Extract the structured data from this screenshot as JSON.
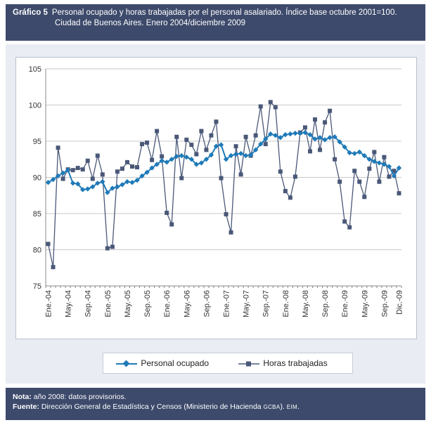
{
  "header": {
    "number": "Gráfico 5",
    "title_line1": "Personal ocupado y horas trabajadas por el personal asalariado. Índice base octubre 2001=100.",
    "title_line2": "Ciudad de Buenos Aires. Enero 2004/diciembre 2009"
  },
  "footer": {
    "note_label": "Nota:",
    "note_text": " año 2008: datos provisorios.",
    "source_label": "Fuente:",
    "source_text": " Dirección General de Estadística y Censos (Ministerio de Hacienda ",
    "source_gcba": "GCBA",
    "source_end": "). ",
    "source_eim": "EIM",
    "source_dot": "."
  },
  "chart_data": {
    "type": "line",
    "ylim": [
      75,
      105
    ],
    "yticks": [
      75,
      80,
      85,
      90,
      95,
      100,
      105
    ],
    "x_tick_labels": [
      "Ene.-04",
      "May.-04",
      "Sep.-04",
      "Ene.-05",
      "May.-05",
      "Sep.-05",
      "Ene.-06",
      "May.-06",
      "Sep.-06",
      "Ene.-07",
      "May.-07",
      "Sep.-07",
      "Ene.-08",
      "May.-08",
      "Sep.-08",
      "Ene.-09",
      "May.-09",
      "Sep.-09",
      "Dic.-09"
    ],
    "x_tick_indices": [
      0,
      4,
      8,
      12,
      16,
      20,
      24,
      28,
      32,
      36,
      40,
      44,
      48,
      52,
      56,
      60,
      64,
      68,
      71
    ],
    "legend_position": "bottom",
    "series": [
      {
        "name": "Personal ocupado",
        "color": "#1f7ab8",
        "marker": "diamond",
        "values": [
          89.3,
          89.7,
          90.2,
          90.6,
          91.0,
          89.2,
          89.1,
          88.3,
          88.4,
          88.7,
          89.2,
          89.4,
          87.9,
          88.5,
          88.7,
          89.0,
          89.4,
          89.3,
          89.6,
          90.2,
          90.7,
          91.3,
          91.8,
          92.3,
          92.1,
          92.5,
          92.9,
          93.0,
          92.8,
          92.5,
          91.8,
          92.0,
          92.5,
          93.1,
          94.3,
          94.5,
          92.5,
          93.0,
          93.2,
          93.3,
          93.0,
          93.1,
          93.8,
          94.6,
          95.3,
          96.0,
          95.8,
          95.5,
          95.9,
          96.0,
          96.1,
          96.1,
          96.2,
          95.9,
          95.3,
          95.5,
          95.2,
          95.5,
          95.6,
          94.9,
          94.2,
          93.4,
          93.3,
          93.5,
          93.0,
          92.5,
          92.2,
          92.0,
          91.8,
          91.5,
          90.2,
          91.3
        ]
      },
      {
        "name": "Horas trabajadas",
        "color": "#4a5878",
        "marker": "square",
        "values": [
          80.8,
          77.6,
          94.1,
          89.8,
          91.1,
          91.0,
          91.3,
          91.1,
          92.3,
          89.8,
          93.0,
          90.4,
          80.2,
          80.4,
          90.8,
          91.2,
          92.1,
          91.5,
          91.4,
          94.6,
          94.8,
          92.4,
          96.4,
          92.9,
          85.1,
          83.5,
          95.6,
          89.9,
          95.2,
          94.5,
          93.2,
          96.4,
          93.8,
          95.8,
          97.7,
          89.9,
          84.9,
          82.4,
          94.3,
          90.4,
          95.6,
          93.0,
          95.8,
          99.8,
          94.6,
          100.4,
          99.7,
          90.8,
          88.1,
          87.2,
          90.1,
          96.2,
          96.9,
          93.6,
          98.0,
          93.8,
          97.6,
          99.2,
          92.5,
          89.4,
          83.9,
          83.1,
          90.9,
          89.4,
          87.3,
          91.2,
          93.5,
          89.4,
          92.8,
          90.1,
          90.9,
          87.8
        ]
      }
    ]
  }
}
